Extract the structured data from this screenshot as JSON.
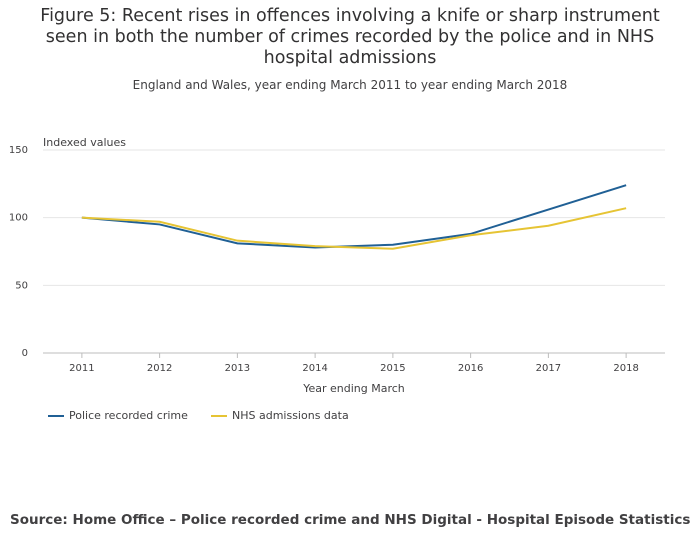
{
  "chart_data": {
    "type": "line",
    "title": "Figure 5: Recent rises in offences involving a knife or sharp instrument seen in both the number of crimes recorded by the police and in NHS hospital admissions",
    "subtitle": "England and Wales, year ending March 2011 to year ending March 2018",
    "y_label": "Indexed values",
    "x_label": "Year ending March",
    "categories": [
      "2011",
      "2012",
      "2013",
      "2014",
      "2015",
      "2016",
      "2017",
      "2018"
    ],
    "series": [
      {
        "name": "Police recorded crime",
        "color": "#206095",
        "values": [
          100,
          95,
          81,
          78,
          80,
          88,
          106,
          124
        ]
      },
      {
        "name": "NHS admissions data",
        "color": "#e6c434",
        "values": [
          100,
          97,
          83,
          79,
          77,
          87,
          94,
          107
        ]
      }
    ],
    "ylim": [
      0,
      150
    ],
    "yticks": [
      0,
      50,
      100,
      150
    ],
    "grid": true,
    "source": "Source: Home Office – Police recorded crime and NHS Digital - Hospital Episode Statistics"
  }
}
